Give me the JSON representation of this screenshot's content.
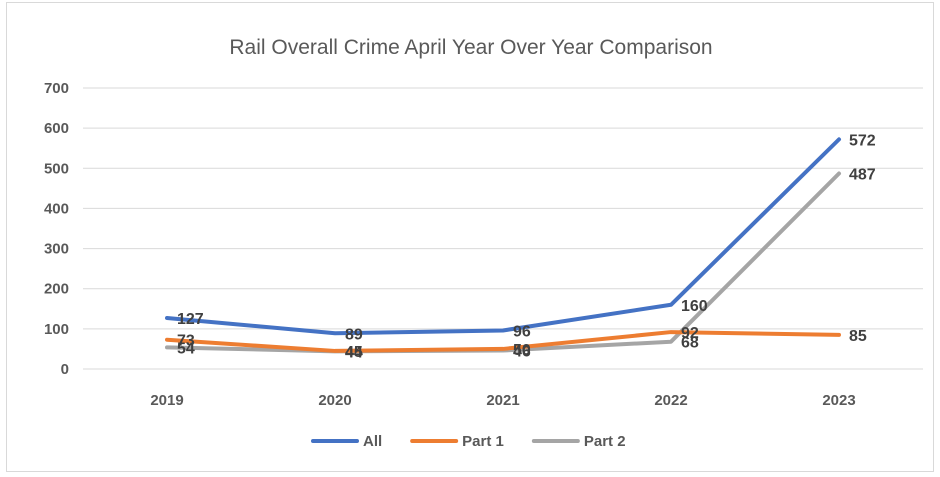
{
  "chart_data": {
    "type": "line",
    "title": "Rail Overall Crime April Year Over Year Comparison",
    "xlabel": "",
    "ylabel": "",
    "categories": [
      "2019",
      "2020",
      "2021",
      "2022",
      "2023"
    ],
    "ylim": [
      0,
      700
    ],
    "yticks": [
      "0",
      "100",
      "200",
      "300",
      "400",
      "500",
      "600",
      "700"
    ],
    "grid": true,
    "legend_position": "bottom",
    "series": [
      {
        "name": "All",
        "color": "#4472C4",
        "values": [
          127,
          89,
          96,
          160,
          572
        ]
      },
      {
        "name": "Part 1",
        "color": "#ED7D31",
        "values": [
          73,
          45,
          50,
          92,
          85
        ]
      },
      {
        "name": "Part 2",
        "color": "#A5A5A5",
        "values": [
          54,
          44,
          46,
          68,
          487
        ]
      }
    ]
  }
}
